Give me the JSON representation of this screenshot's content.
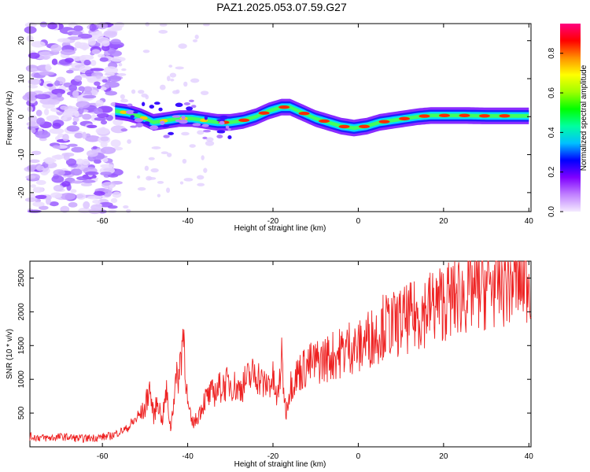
{
  "chart_data": [
    {
      "type": "heatmap",
      "title": "PAZ1.2025.053.07.59.G27",
      "xlabel": "Height of straight line (km)",
      "ylabel": "Frequency (Hz)",
      "xlim": [
        -77,
        40.5
      ],
      "ylim": [
        -25,
        24.5
      ],
      "xticks": [
        -60,
        -40,
        -20,
        0,
        20,
        40
      ],
      "yticks": [
        -20,
        -10,
        0,
        10,
        20
      ],
      "ridge_frequency": {
        "x": [
          -57,
          -54,
          -51,
          -48,
          -45,
          -42,
          -39,
          -36,
          -33,
          -30,
          -27,
          -24,
          -21,
          -18,
          -16,
          -13,
          -10,
          -7,
          -4,
          -1,
          2,
          5,
          8,
          11,
          14,
          17,
          20,
          25,
          30,
          35,
          40
        ],
        "y": [
          1.5,
          1.0,
          0.0,
          -1.5,
          -1.0,
          -0.5,
          -0.5,
          -1.0,
          -1.5,
          -1.5,
          -1.0,
          0.0,
          1.5,
          2.5,
          2.5,
          1.0,
          -0.5,
          -1.5,
          -2.5,
          -3.0,
          -2.5,
          -1.5,
          -1.0,
          -0.5,
          0.0,
          0.3,
          0.3,
          0.3,
          0.2,
          0.2,
          0.2
        ]
      },
      "colorbar": {
        "label": "Normalized spectral amplitude",
        "ticks": [
          "0.0",
          "0.2",
          "0.4",
          "0.6",
          "0.8"
        ],
        "colors": [
          "#f4eaff",
          "#c080ff",
          "#8000ff",
          "#0000ff",
          "#00c0ff",
          "#00ffa0",
          "#00ff00",
          "#a0ff00",
          "#ffff00",
          "#ff9000",
          "#ff0000",
          "#ff0080"
        ]
      }
    },
    {
      "type": "line",
      "xlabel": "Height of straight line (km)",
      "ylabel": "SNR (10 * v/v)",
      "xlim": [
        -77,
        40.5
      ],
      "ylim": [
        0,
        2750
      ],
      "xticks": [
        -60,
        -40,
        -20,
        0,
        20,
        40
      ],
      "yticks": [
        500,
        1000,
        1500,
        2000,
        2500
      ],
      "series": [
        {
          "name": "SNR",
          "color": "#ee2222",
          "x": [
            -77,
            -73,
            -69,
            -65,
            -61,
            -58,
            -56,
            -54,
            -52,
            -50,
            -49,
            -48,
            -47,
            -46,
            -45,
            -44,
            -43,
            -42,
            -41,
            -40,
            -39,
            -38,
            -36,
            -34,
            -32,
            -30,
            -28,
            -26,
            -24,
            -22,
            -20,
            -19,
            -18,
            -17,
            -16,
            -14,
            -12,
            -10,
            -8,
            -6,
            -4,
            -2,
            0,
            2,
            4,
            6,
            8,
            10,
            12,
            14,
            16,
            18,
            20,
            22,
            24,
            26,
            28,
            30,
            32,
            34,
            36,
            38,
            40.5
          ],
          "y": [
            150,
            130,
            150,
            120,
            140,
            160,
            220,
            280,
            420,
            560,
            900,
            450,
            700,
            380,
            820,
            260,
            900,
            1100,
            1750,
            600,
            350,
            400,
            700,
            800,
            900,
            950,
            850,
            1000,
            1100,
            900,
            1000,
            650,
            1300,
            500,
            900,
            1100,
            1200,
            1250,
            1300,
            1350,
            1400,
            1500,
            1450,
            1600,
            1650,
            1800,
            1800,
            1850,
            1900,
            1950,
            2050,
            2100,
            2150,
            2200,
            2250,
            2300,
            2350,
            2380,
            2420,
            2450,
            2470,
            2500,
            2520
          ]
        }
      ]
    }
  ]
}
